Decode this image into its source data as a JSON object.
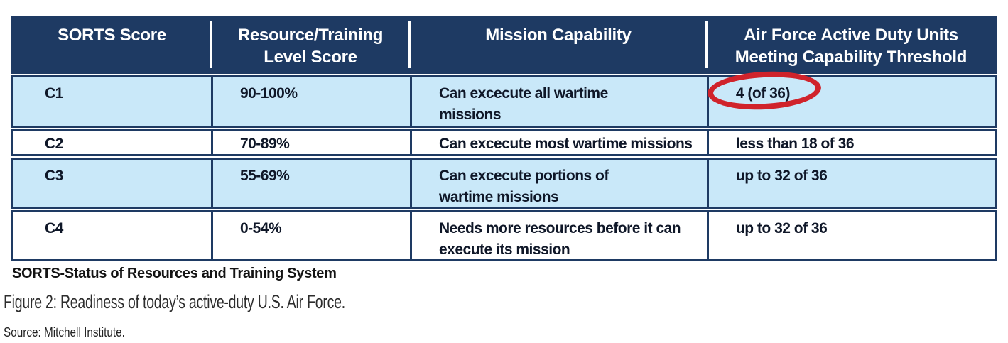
{
  "table": {
    "headers": [
      "SORTS Score",
      "Resource/Training\nLevel Score",
      "Mission Capability",
      "Air Force Active Duty Units\nMeeting Capability Threshold"
    ],
    "rows": [
      {
        "score": "C1",
        "level": "90-100%",
        "capability": "Can excecute all wartime\nmissions",
        "threshold": "4 (of 36)",
        "highlighted": true
      },
      {
        "score": "C2",
        "level": "70-89%",
        "capability": "Can excecute most wartime missions",
        "threshold": "less than 18 of 36",
        "highlighted": false
      },
      {
        "score": "C3",
        "level": "55-69%",
        "capability": "Can excecute portions of\nwartime missions",
        "threshold": "up to 32 of 36",
        "highlighted": false
      },
      {
        "score": "C4",
        "level": "0-54%",
        "capability": "Needs more resources before it can\nexecute its mission",
        "threshold": "up to 32 of 36",
        "highlighted": false
      }
    ],
    "footnote": "SORTS-Status of Resources and Training System"
  },
  "caption": "Figure 2: Readiness of today’s active-duty U.S. Air Force.",
  "source": "Source: Mitchell Institute.",
  "annotation": {
    "circled_value": "4 (of 36)",
    "shape": "hand-drawn red oval"
  },
  "colors": {
    "header_navy": "#1e3a63",
    "row_blue": "#c9e8f9",
    "border_navy": "#1e3a63",
    "highlight_red": "#d0232b"
  }
}
